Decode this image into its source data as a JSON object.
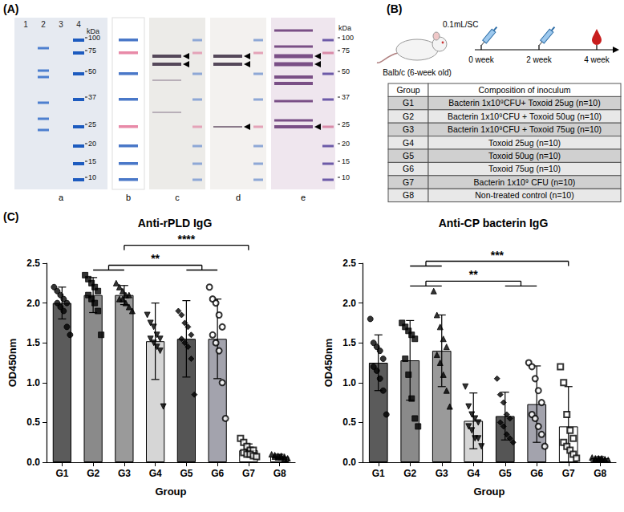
{
  "panels": {
    "A": {
      "letter": "(A)",
      "lanes": [
        "1",
        "2",
        "3",
        "4"
      ],
      "sub_panels": [
        "a",
        "b",
        "c",
        "d",
        "e"
      ],
      "marker_unit": "kDa",
      "markers": [
        100,
        75,
        50,
        37,
        25,
        20,
        15,
        10
      ]
    },
    "B": {
      "letter": "(B)",
      "dose": "0.1mL/SC",
      "timepoints": [
        "0 week",
        "2 week",
        "4 week"
      ],
      "animal": "Balb/c (6-week old)",
      "table": {
        "header": [
          "Group",
          "Composition of inoculum"
        ],
        "rows": [
          [
            "G1",
            "Bacterin 1x10⁹CFU+ Toxoid 25ug (n=10)"
          ],
          [
            "G2",
            "Bacterin 1x10⁹CFU + Toxoid 50ug (n=10)"
          ],
          [
            "G3",
            "Bacterin 1x10⁹CFU + Toxoid 75ug (n=10)"
          ],
          [
            "G4",
            "Toxoid 25ug (n=10)"
          ],
          [
            "G5",
            "Toxoid 50ug (n=10)"
          ],
          [
            "G6",
            "Toxoid 75ug (n=10)"
          ],
          [
            "G7",
            "Bacterin 1x10⁹ CFU (n=10)"
          ],
          [
            "G8",
            "Non-treated control (n=10)"
          ]
        ]
      }
    },
    "C": {
      "letter": "(C)"
    }
  },
  "chart_data": [
    {
      "type": "bar",
      "title": "Anti-rPLD IgG",
      "x_label": "Group",
      "y_label": "OD450nm",
      "categories": [
        "G1",
        "G2",
        "G3",
        "G4",
        "G5",
        "G6",
        "G7",
        "G8"
      ],
      "values": [
        2.0,
        2.1,
        2.1,
        1.52,
        1.55,
        1.55,
        0.15,
        0.07
      ],
      "sd": [
        0.2,
        0.22,
        0.12,
        0.48,
        0.48,
        0.5,
        0.08,
        0.03
      ],
      "points": [
        [
          2.2,
          2.15,
          2.1,
          2.05,
          2.0,
          2.0,
          1.95,
          1.9,
          1.7,
          1.6
        ],
        [
          2.35,
          2.3,
          2.25,
          2.2,
          2.15,
          2.1,
          2.05,
          2.0,
          1.9,
          1.6
        ],
        [
          2.25,
          2.2,
          2.15,
          2.1,
          2.1,
          2.05,
          2.05,
          2.0,
          1.95,
          1.9
        ],
        [
          1.85,
          1.75,
          1.7,
          1.6,
          1.55,
          1.55,
          1.5,
          1.45,
          1.4,
          0.7
        ],
        [
          1.9,
          1.85,
          1.75,
          1.7,
          1.6,
          1.55,
          1.5,
          1.45,
          1.3,
          0.85
        ],
        [
          2.2,
          2.05,
          2.0,
          1.85,
          1.7,
          1.6,
          1.5,
          1.4,
          1.0,
          0.55
        ],
        [
          0.3,
          0.25,
          0.2,
          0.15,
          0.15,
          0.12,
          0.1,
          0.1,
          0.08,
          0.07
        ],
        [
          0.1,
          0.09,
          0.08,
          0.08,
          0.07,
          0.07,
          0.06,
          0.06,
          0.05,
          0.05
        ]
      ],
      "colors": [
        "#5b5b5b",
        "#8a8a8a",
        "#9a9a9a",
        "#d6d6d6",
        "#555555",
        "#a3a3ad",
        "#ffffff",
        "#ffffff"
      ],
      "markers": [
        "circle",
        "square",
        "triangle",
        "triangle-down",
        "diamond",
        "circle-open",
        "square-open",
        "triangle"
      ],
      "ylim": [
        0,
        2.5
      ],
      "yticks": [
        {
          "value": 0,
          "label": "0.0"
        },
        0.5,
        {
          "value": 1,
          "label": "1.0"
        },
        1.5,
        {
          "value": 2,
          "label": "2.0"
        },
        2.5
      ],
      "grid": false,
      "annotations": [
        {
          "label": "**",
          "from": [
            "G2",
            "G3"
          ],
          "to": [
            "G5",
            "G6"
          ]
        },
        {
          "label": "****",
          "from": [
            "G3"
          ],
          "to": [
            "G7"
          ]
        }
      ]
    },
    {
      "type": "bar",
      "title": "Anti-CP bacterin IgG",
      "x_label": "Group",
      "y_label": "OD450nm",
      "categories": [
        "G1",
        "G2",
        "G3",
        "G4",
        "G5",
        "G6",
        "G7",
        "G8"
      ],
      "values": [
        1.25,
        1.28,
        1.4,
        0.52,
        0.58,
        0.73,
        0.45,
        0.05
      ],
      "sd": [
        0.35,
        0.5,
        0.45,
        0.35,
        0.3,
        0.48,
        0.5,
        0.02
      ],
      "points": [
        [
          1.8,
          1.5,
          1.45,
          1.4,
          1.3,
          1.2,
          1.15,
          1.05,
          0.9,
          0.6
        ],
        [
          1.75,
          1.7,
          1.65,
          1.6,
          1.55,
          1.3,
          1.1,
          0.8,
          0.55,
          0.45
        ],
        [
          2.15,
          1.85,
          1.7,
          1.55,
          1.45,
          1.35,
          1.25,
          1.1,
          0.9,
          0.7
        ],
        [
          0.95,
          0.7,
          0.6,
          0.55,
          0.5,
          0.45,
          0.4,
          0.3,
          0.3,
          0.2
        ],
        [
          1.05,
          0.85,
          0.75,
          0.6,
          0.55,
          0.5,
          0.45,
          0.35,
          0.3,
          0.25
        ],
        [
          1.25,
          1.2,
          1.05,
          0.9,
          0.75,
          0.6,
          0.55,
          0.45,
          0.35,
          0.2
        ],
        [
          1.2,
          1.0,
          0.6,
          0.4,
          0.3,
          0.25,
          0.2,
          0.15,
          0.1,
          0.05
        ],
        [
          0.06,
          0.05,
          0.05,
          0.05,
          0.04,
          0.04,
          0.04,
          0.03,
          0.03,
          0.03
        ]
      ],
      "colors": [
        "#5b5b5b",
        "#8a8a8a",
        "#9a9a9a",
        "#d6d6d6",
        "#555555",
        "#a3a3ad",
        "#ffffff",
        "#ffffff"
      ],
      "markers": [
        "circle",
        "square",
        "triangle",
        "triangle-down",
        "diamond",
        "circle-open",
        "square-open",
        "triangle"
      ],
      "ylim": [
        0,
        2.5
      ],
      "yticks": [
        {
          "value": 0,
          "label": "0.0"
        },
        0.5,
        {
          "value": 1,
          "label": "1.0"
        },
        1.5,
        {
          "value": 2,
          "label": "2.0"
        },
        2.5
      ],
      "grid": false,
      "annotations": [
        {
          "label": "**",
          "from": [
            "G2",
            "G3"
          ],
          "to": [
            "G5",
            "G6"
          ]
        },
        {
          "label": "***",
          "from": [
            "G2",
            "G3"
          ],
          "to": [
            "G7"
          ]
        }
      ]
    }
  ]
}
